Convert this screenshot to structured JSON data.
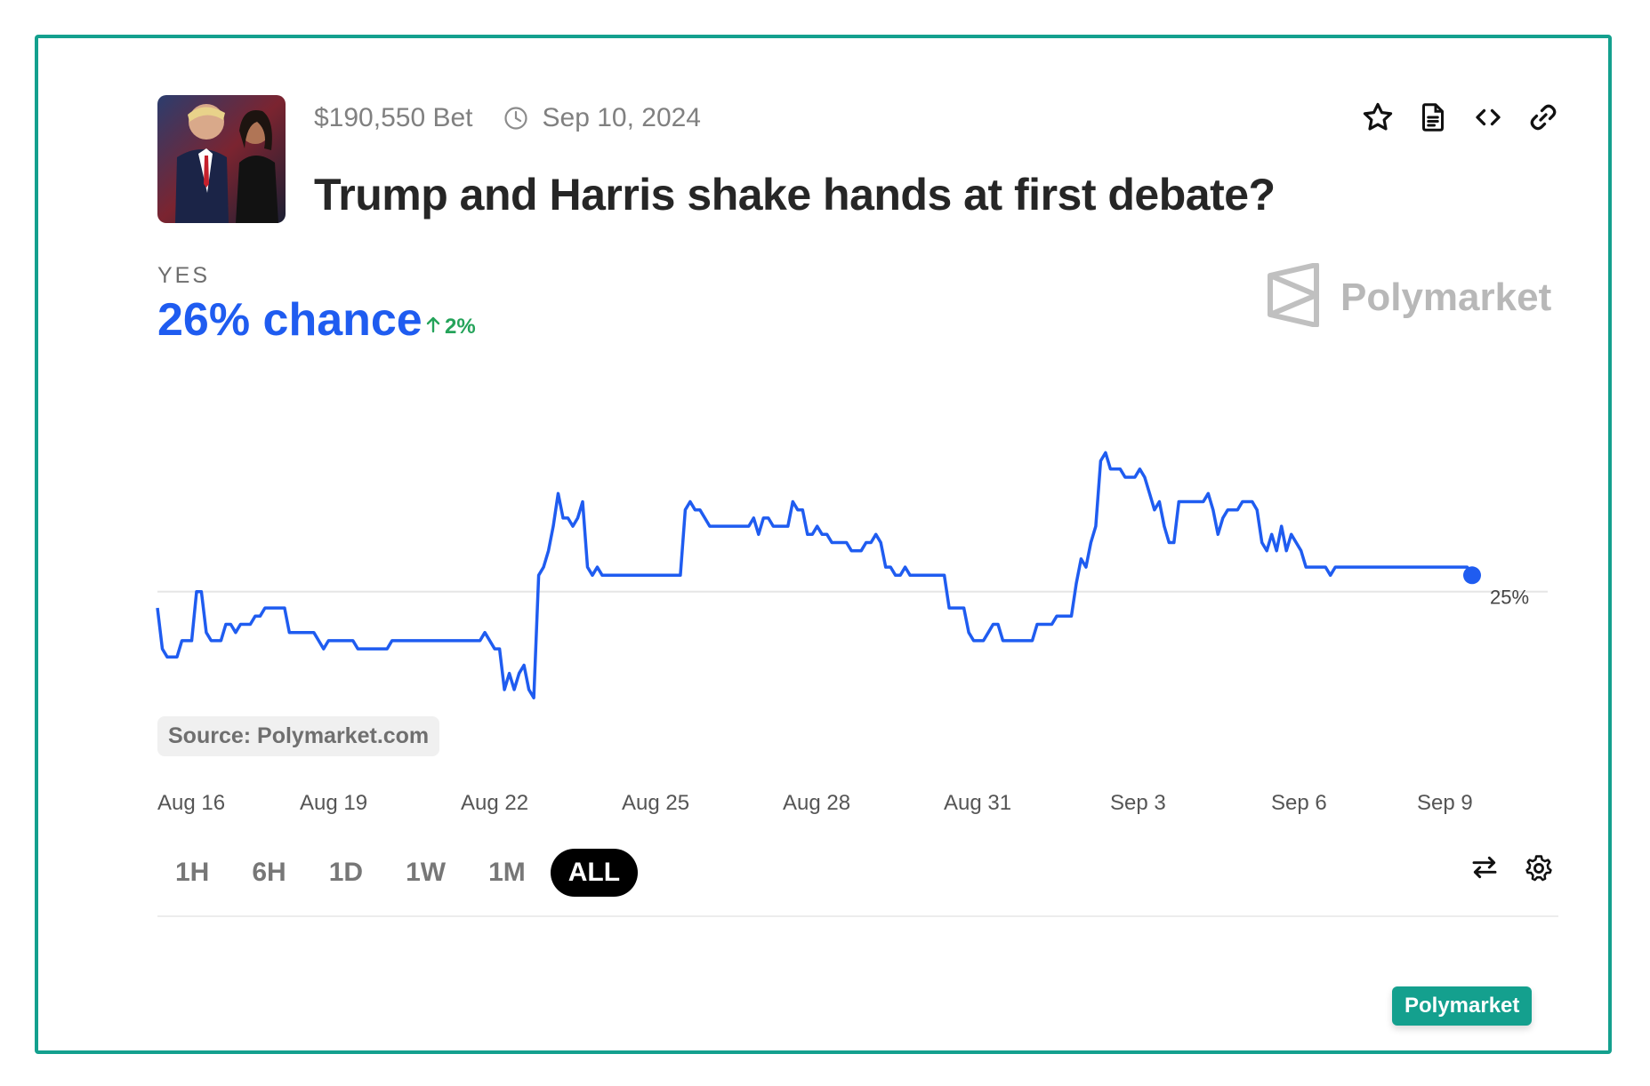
{
  "market": {
    "volume": "$190,550 Bet",
    "date": "Sep 10, 2024",
    "title": "Trump and Harris shake hands at first debate?",
    "outcome_label": "YES",
    "chance": "26% chance",
    "delta": "2%",
    "thumbnail_alt": "Trump and Harris photo"
  },
  "brand": {
    "name": "Polymarket",
    "badge": "Polymarket"
  },
  "source": "Source: Polymarket.com",
  "ranges": [
    "1H",
    "6H",
    "1D",
    "1W",
    "1M",
    "ALL"
  ],
  "active_range": "ALL",
  "icons": {
    "star": "star-icon",
    "doc": "document-icon",
    "embed": "code-icon",
    "link": "link-icon",
    "clock": "clock-icon",
    "swap": "swap-icon",
    "settings": "gear-icon"
  },
  "colors": {
    "line": "#1f5cf0",
    "frame": "#14a08e",
    "delta": "#25a35a"
  },
  "chart_data": {
    "type": "line",
    "x_ticks": [
      "Aug 16",
      "Aug 19",
      "Aug 22",
      "Aug 25",
      "Aug 28",
      "Aug 31",
      "Sep 3",
      "Sep 6",
      "Sep 9"
    ],
    "y_gridline": 25,
    "y_gridline_label": "25%",
    "ylim": [
      14,
      37
    ],
    "series": [
      {
        "values": [
          24,
          21.5,
          21,
          21,
          21,
          22,
          22,
          22,
          25,
          25,
          22.5,
          22,
          22,
          22,
          23,
          23,
          22.5,
          23,
          23,
          23,
          23.5,
          23.5,
          24,
          24,
          24,
          24,
          24,
          22.5,
          22.5,
          22.5,
          22.5,
          22.5,
          22.5,
          22,
          21.5,
          22,
          22,
          22,
          22,
          22,
          22,
          21.5,
          21.5,
          21.5,
          21.5,
          21.5,
          21.5,
          21.5,
          22,
          22,
          22,
          22,
          22,
          22,
          22,
          22,
          22,
          22,
          22,
          22,
          22,
          22,
          22,
          22,
          22,
          22,
          22,
          22.5,
          22,
          21.5,
          21.5,
          19,
          20,
          19,
          20,
          20.5,
          19,
          18.5,
          26,
          26.5,
          27.5,
          29,
          31,
          29.5,
          29.5,
          29,
          29.5,
          30.5,
          26.5,
          26,
          26.5,
          26,
          26,
          26,
          26,
          26,
          26,
          26,
          26,
          26,
          26,
          26,
          26,
          26,
          26,
          26,
          26,
          26,
          30,
          30.5,
          30,
          30,
          29.5,
          29,
          29,
          29,
          29,
          29,
          29,
          29,
          29,
          29,
          29.5,
          28.5,
          29.5,
          29.5,
          29,
          29,
          29,
          29,
          30.5,
          30,
          30,
          28.5,
          28.5,
          29,
          28.5,
          28.5,
          28,
          28,
          28,
          28,
          27.5,
          27.5,
          27.5,
          28,
          28,
          28.5,
          28,
          26.5,
          26.5,
          26,
          26,
          26.5,
          26,
          26,
          26,
          26,
          26,
          26,
          26,
          26,
          24,
          24,
          24,
          24,
          22.5,
          22,
          22,
          22,
          22.5,
          23,
          23,
          22,
          22,
          22,
          22,
          22,
          22,
          22,
          23,
          23,
          23,
          23,
          23.5,
          23.5,
          23.5,
          23.5,
          25.5,
          27,
          26.5,
          28,
          29,
          33,
          33.5,
          32.5,
          32.5,
          32.5,
          32,
          32,
          32,
          32.5,
          32,
          31,
          30,
          30.5,
          29,
          28,
          28,
          30.5,
          30.5,
          30.5,
          30.5,
          30.5,
          30.5,
          31,
          30,
          28.5,
          29.5,
          30,
          30,
          30,
          30.5,
          30.5,
          30.5,
          30,
          28,
          27.5,
          28.5,
          27.5,
          29,
          27.5,
          28.5,
          28,
          27.5,
          26.5,
          26.5,
          26.5,
          26.5,
          26.5,
          26,
          26.5,
          26.5,
          26.5,
          26.5,
          26.5,
          26.5,
          26.5,
          26.5,
          26.5,
          26.5,
          26.5,
          26.5,
          26.5,
          26.5,
          26.5,
          26.5,
          26.5,
          26.5,
          26.5,
          26.5,
          26.5,
          26.5,
          26.5,
          26.5,
          26.5,
          26.5,
          26.5,
          26.5,
          26
        ]
      }
    ]
  }
}
